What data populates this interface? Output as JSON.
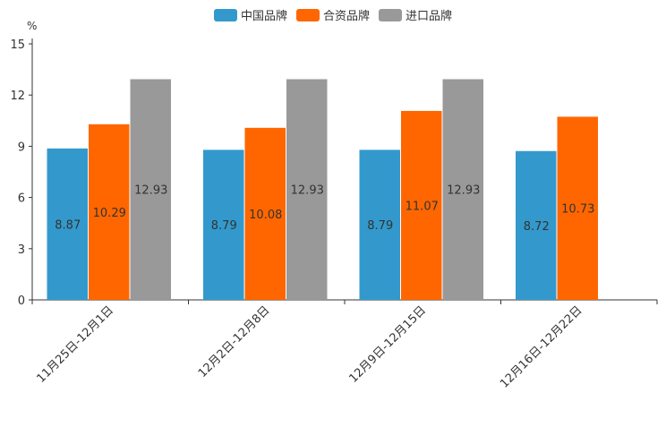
{
  "chart_data": {
    "type": "bar",
    "title": "",
    "unit_label": "%",
    "categories": [
      "11月25日-12月1日",
      "12月2日-12月8日",
      "12月9日-12月15日",
      "12月16日-12月22日"
    ],
    "series": [
      {
        "name": "中国品牌",
        "color": "#3399cc",
        "values": [
          8.87,
          8.79,
          8.79,
          8.72
        ],
        "labels": [
          "8.87",
          "8.79",
          "8.79",
          "8.72"
        ]
      },
      {
        "name": "合资品牌",
        "color": "#ff6600",
        "values": [
          10.29,
          10.08,
          11.07,
          10.73
        ],
        "labels": [
          "10.29",
          "10.08",
          "11.07",
          "10.73"
        ]
      },
      {
        "name": "进口品牌",
        "color": "#999999",
        "values": [
          12.93,
          12.93,
          12.93,
          null
        ],
        "labels": [
          "12.93",
          "12.93",
          "12.93",
          ""
        ]
      }
    ],
    "y_ticks": [
      "0",
      "3",
      "6",
      "9",
      "12",
      "15"
    ],
    "ylim": [
      0,
      15
    ],
    "xlabel": "",
    "ylabel": "%",
    "grid": false,
    "legend_position": "top-center"
  }
}
